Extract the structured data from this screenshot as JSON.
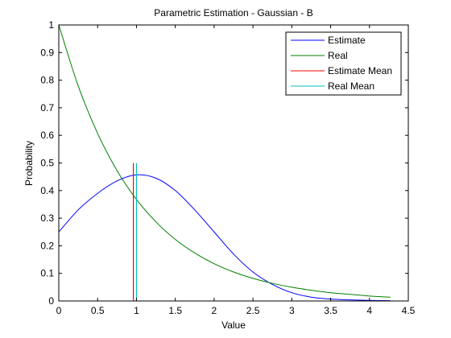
{
  "chart_data": {
    "type": "line",
    "title": "Parametric Estimation - Gaussian - B",
    "xlabel": "Value",
    "ylabel": "Probability",
    "xlim": [
      0,
      4.5
    ],
    "ylim": [
      0,
      1
    ],
    "xticks": [
      0,
      0.5,
      1,
      1.5,
      2,
      2.5,
      3,
      3.5,
      4,
      4.5
    ],
    "xtick_labels": [
      "0",
      "0.5",
      "1",
      "1.5",
      "2",
      "2.5",
      "3",
      "3.5",
      "4",
      "4.5"
    ],
    "yticks": [
      0,
      0.1,
      0.2,
      0.3,
      0.4,
      0.5,
      0.6,
      0.7,
      0.8,
      0.9,
      1
    ],
    "ytick_labels": [
      "0",
      "0.1",
      "0.2",
      "0.3",
      "0.4",
      "0.5",
      "0.6",
      "0.7",
      "0.8",
      "0.9",
      "1"
    ],
    "grid": false,
    "legend_position": "top-right",
    "series": [
      {
        "name": "Estimate",
        "color": "#0000ff",
        "x": [
          0,
          0.25,
          0.5,
          0.75,
          1.0,
          1.25,
          1.5,
          1.75,
          2.0,
          2.25,
          2.5,
          2.75,
          3.0,
          3.25,
          3.5,
          3.75,
          4.0,
          4.27
        ],
        "values": [
          0.25,
          0.33,
          0.39,
          0.435,
          0.457,
          0.445,
          0.4,
          0.33,
          0.25,
          0.17,
          0.105,
          0.06,
          0.03,
          0.014,
          0.007,
          0.004,
          0.002,
          0.001
        ]
      },
      {
        "name": "Real",
        "color": "#008000",
        "x": [
          0,
          0.25,
          0.5,
          0.75,
          1.0,
          1.25,
          1.5,
          1.75,
          2.0,
          2.25,
          2.5,
          2.75,
          3.0,
          3.25,
          3.5,
          3.75,
          4.0,
          4.27
        ],
        "values": [
          1.0,
          0.779,
          0.607,
          0.472,
          0.368,
          0.287,
          0.223,
          0.174,
          0.135,
          0.105,
          0.082,
          0.064,
          0.05,
          0.039,
          0.03,
          0.024,
          0.018,
          0.014
        ]
      }
    ],
    "vlines": [
      {
        "name": "Estimate Mean",
        "color": "#ff0000",
        "x": 0.96,
        "ymax": 0.5
      },
      {
        "name": "Real Mean",
        "color": "#00bfbf",
        "x": 1.0,
        "ymax": 0.5
      }
    ]
  }
}
